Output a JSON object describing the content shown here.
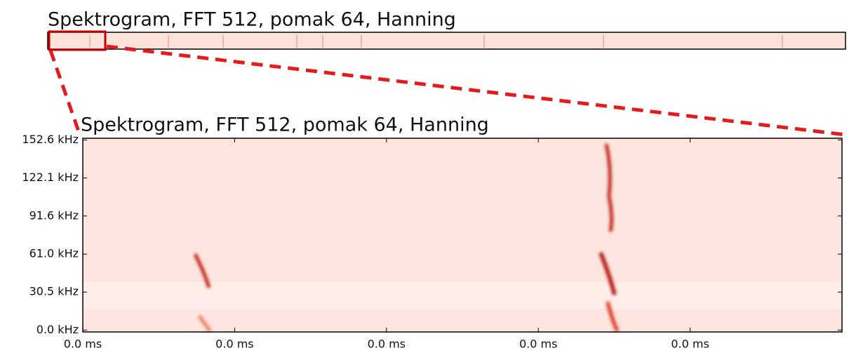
{
  "chart_data": [
    {
      "type": "spectrogram",
      "title": "Spektrogram, FFT 512, pomak 64, Hanning"
    },
    {
      "type": "spectrogram",
      "title": "Spektrogram, FFT 512, pomak 64, Hanning",
      "xlim": [
        0,
        0.05
      ],
      "xticks": [
        {
          "value": 0,
          "label": "0.0 ms"
        },
        {
          "value": 0.01,
          "label": "0.0 ms"
        },
        {
          "value": 0.02,
          "label": "0.0 ms"
        },
        {
          "value": 0.03,
          "label": "0.0 ms"
        },
        {
          "value": 0.04,
          "label": "0.0 ms"
        }
      ],
      "ylim": [
        -1.5,
        154
      ],
      "yticks": [
        {
          "value": 0,
          "label": "0.0 kHz"
        },
        {
          "value": 30.5,
          "label": "30.5 kHz"
        },
        {
          "value": 61.0,
          "label": "61.0 kHz"
        },
        {
          "value": 91.6,
          "label": "91.6 kHz"
        },
        {
          "value": 122.1,
          "label": "122.1 kHz"
        },
        {
          "value": 152.6,
          "label": "152.6 kHz"
        }
      ],
      "color": "#d7301f"
    }
  ]
}
